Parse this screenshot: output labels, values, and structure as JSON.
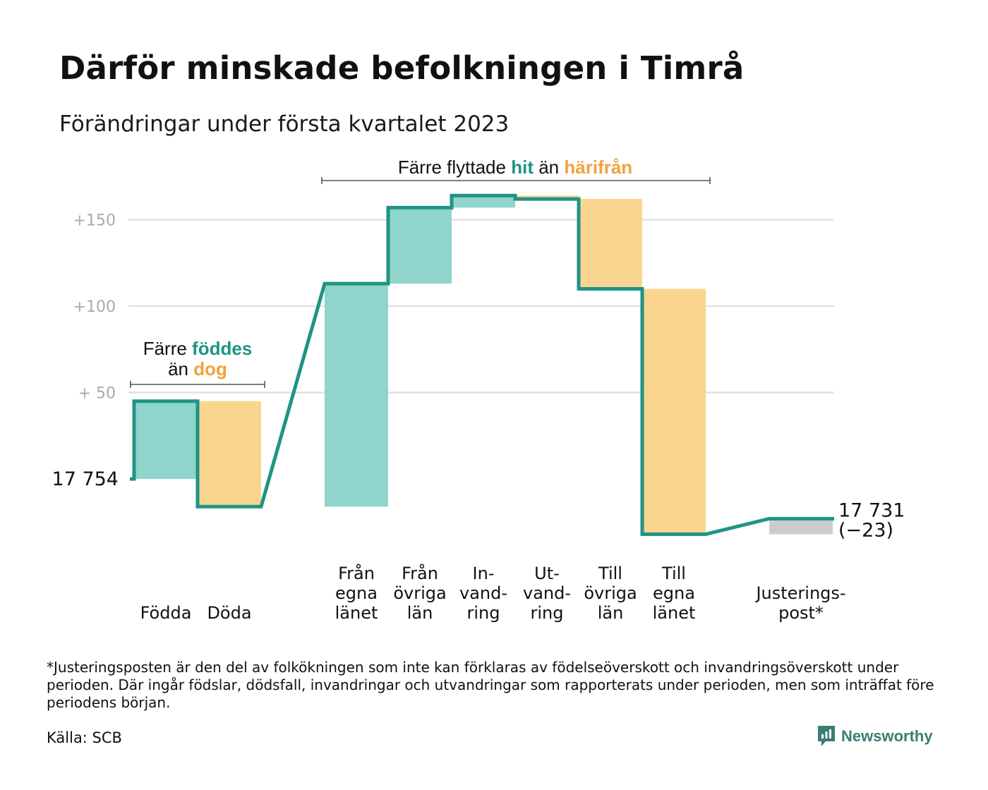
{
  "title": "Därför minskade befolkningen i Timrå",
  "subtitle": "Förändringar under första kvartalet 2023",
  "annotations": {
    "births": {
      "line1": "Färre ",
      "line1_hi": "föddes",
      "line2": "än ",
      "line2_hi": "dog"
    },
    "migration": {
      "pre": "Färre flyttade ",
      "hi1": "hit",
      "mid": " än ",
      "hi2": "härifrån"
    }
  },
  "chart_data": {
    "type": "waterfall",
    "baseline_value": 17754,
    "start_label": "17 754",
    "end_label": [
      "17 731",
      "(−23)"
    ],
    "y_ticks": [
      {
        "v": 50,
        "label": "+ 50"
      },
      {
        "v": 100,
        "label": "+100"
      },
      {
        "v": 150,
        "label": "+150"
      }
    ],
    "grid": true,
    "ylim": [
      -33,
      165
    ],
    "steps": [
      {
        "label": [
          "",
          "",
          "Födda"
        ],
        "change": 45,
        "kind": "in"
      },
      {
        "label": [
          "",
          "",
          "Döda"
        ],
        "change": -61,
        "kind": "out"
      },
      {
        "label": [
          "Från",
          "egna",
          "länet"
        ],
        "change": 129,
        "kind": "in"
      },
      {
        "label": [
          "Från",
          "övriga",
          "län"
        ],
        "change": 44,
        "kind": "in"
      },
      {
        "label": [
          "In-",
          "vand-",
          "ring"
        ],
        "change": 7,
        "kind": "in"
      },
      {
        "label": [
          "Ut-",
          "vand-",
          "ring"
        ],
        "change": -2,
        "kind": "out"
      },
      {
        "label": [
          "Till",
          "övriga",
          "län"
        ],
        "change": -52,
        "kind": "out"
      },
      {
        "label": [
          "Till",
          "egna",
          "länet"
        ],
        "change": -142,
        "kind": "out"
      },
      {
        "label": [
          "",
          "Justerings-",
          "post*"
        ],
        "change": 9,
        "kind": "adjust"
      }
    ],
    "colors": {
      "in": "#8fd5cc",
      "out": "#fad58f",
      "adjust": "#cccccc",
      "line": "#1f9484",
      "grid": "#e2e2e2",
      "hi_in": "#1f9484",
      "hi_out": "#f2a13a"
    }
  },
  "footnote": "*Justeringsposten är den del av folkökningen som inte kan förklaras av födelseöverskott och invandringsöverskott under perioden. Där ingår födslar, dödsfall, invandringar och utvandringar som rapporterats under perioden, men som inträffat före periodens början.",
  "source": "Källa: SCB",
  "logo": {
    "text": "Newsworthy",
    "icon": "newsworthy-logo-icon"
  }
}
